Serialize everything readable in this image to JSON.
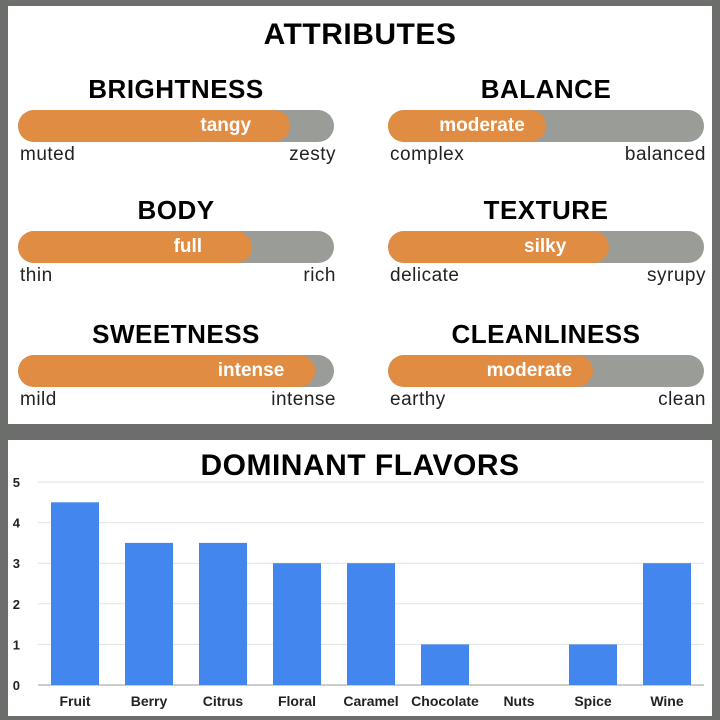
{
  "attributes": {
    "title": "ATTRIBUTES",
    "accent_color": "#e08c43",
    "track_color": "#9a9c98",
    "items": [
      {
        "name": "BRIGHTNESS",
        "value": "tangy",
        "level": 0.86,
        "low": "muted",
        "high": "zesty"
      },
      {
        "name": "BALANCE",
        "value": "moderate",
        "level": 0.5,
        "low": "complex",
        "high": "balanced"
      },
      {
        "name": "BODY",
        "value": "full",
        "level": 0.74,
        "low": "thin",
        "high": "rich"
      },
      {
        "name": "TEXTURE",
        "value": "silky",
        "level": 0.7,
        "low": "delicate",
        "high": "syrupy"
      },
      {
        "name": "SWEETNESS",
        "value": "intense",
        "level": 0.94,
        "low": "mild",
        "high": "intense"
      },
      {
        "name": "CLEANLINESS",
        "value": "moderate",
        "level": 0.65,
        "low": "earthy",
        "high": "clean"
      }
    ]
  },
  "flavors": {
    "title": "DOMINANT FLAVORS"
  },
  "chart_data": {
    "type": "bar",
    "title": "DOMINANT FLAVORS",
    "categories": [
      "Fruit",
      "Berry",
      "Citrus",
      "Floral",
      "Caramel",
      "Chocolate",
      "Nuts",
      "Spice",
      "Wine"
    ],
    "values": [
      4.5,
      3.5,
      3.5,
      3,
      3,
      1,
      0,
      1,
      3
    ],
    "ylim": [
      0,
      5
    ],
    "yticks": [
      0,
      1,
      2,
      3,
      4,
      5
    ],
    "bar_color": "#4387ee",
    "grid": true
  }
}
